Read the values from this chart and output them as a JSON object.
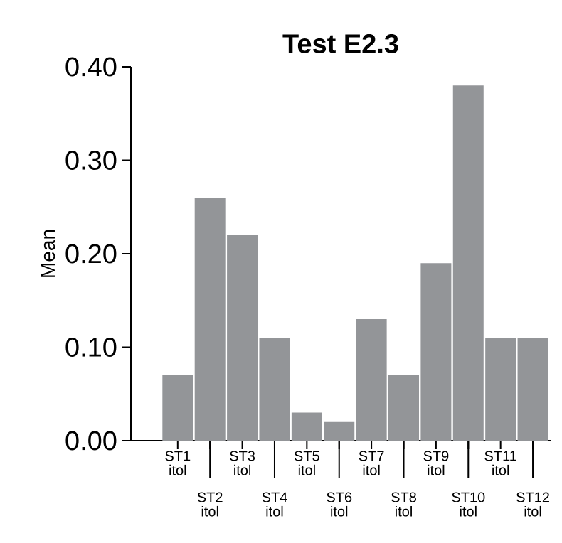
{
  "chart_data": {
    "type": "bar",
    "title": "Test E2.3",
    "ylabel": "Mean",
    "categories": [
      "ST1 itol",
      "ST2 itol",
      "ST3 itol",
      "ST4 itol",
      "ST5 itol",
      "ST6 itol",
      "ST7 itol",
      "ST8 itol",
      "ST9 itol",
      "ST10 itol",
      "ST11 itol",
      "ST12 itol"
    ],
    "values": [
      0.07,
      0.26,
      0.22,
      0.11,
      0.03,
      0.02,
      0.13,
      0.07,
      0.19,
      0.38,
      0.11,
      0.11
    ],
    "color": "#939598",
    "ylim": [
      0,
      0.4
    ],
    "yticks": [
      {
        "value": 0,
        "label": "0.00"
      },
      {
        "value": 0.1,
        "label": "0.10"
      },
      {
        "value": 0.2,
        "label": "0.20"
      },
      {
        "value": 0.3,
        "label": "0.30"
      },
      {
        "value": 0.4,
        "label": "0.40"
      }
    ]
  }
}
